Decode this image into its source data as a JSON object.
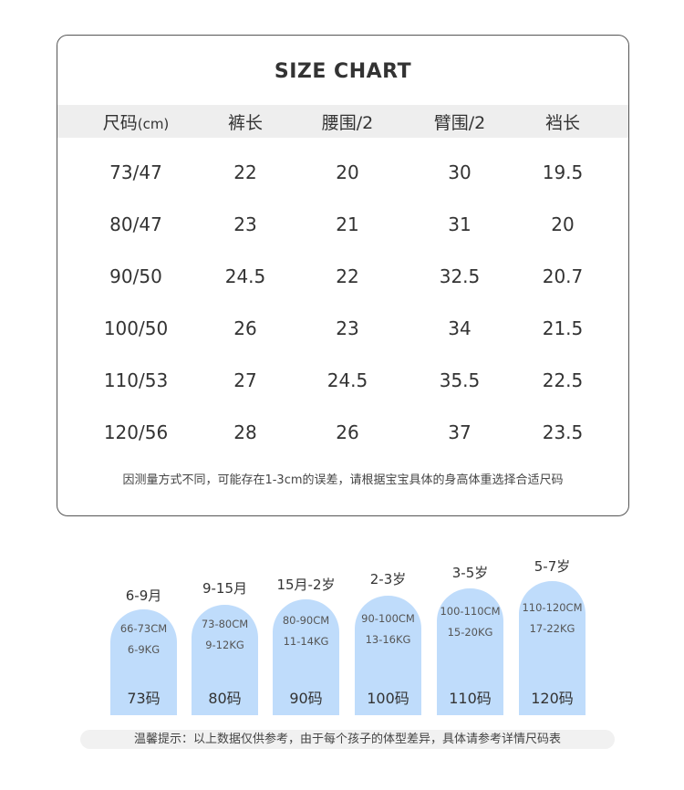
{
  "chart": {
    "title": "SIZE CHART",
    "headers": [
      {
        "label": "尺码",
        "unit": "(cm)"
      },
      {
        "label": "裤长",
        "unit": ""
      },
      {
        "label": "腰围/2",
        "unit": ""
      },
      {
        "label": "臂围/2",
        "unit": ""
      },
      {
        "label": "裆长",
        "unit": ""
      }
    ],
    "rows": [
      [
        "73/47",
        "22",
        "20",
        "30",
        "19.5"
      ],
      [
        "80/47",
        "23",
        "21",
        "31",
        "20"
      ],
      [
        "90/50",
        "24.5",
        "22",
        "32.5",
        "20.7"
      ],
      [
        "100/50",
        "26",
        "23",
        "34",
        "21.5"
      ],
      [
        "110/53",
        "27",
        "24.5",
        "35.5",
        "22.5"
      ],
      [
        "120/56",
        "28",
        "26",
        "37",
        "23.5"
      ]
    ],
    "note": "因测量方式不同，可能存在1-3cm的误差，请根据宝宝具体的身高体重选择合适尺码"
  },
  "ages": [
    {
      "age": "6-9月",
      "height": "66-73CM",
      "weight": "6-9KG",
      "code": "73码"
    },
    {
      "age": "9-15月",
      "height": "73-80CM",
      "weight": "9-12KG",
      "code": "80码"
    },
    {
      "age": "15月-2岁",
      "height": "80-90CM",
      "weight": "11-14KG",
      "code": "90码"
    },
    {
      "age": "2-3岁",
      "height": "90-100CM",
      "weight": "13-16KG",
      "code": "100码"
    },
    {
      "age": "3-5岁",
      "height": "100-110CM",
      "weight": "15-20KG",
      "code": "110码"
    },
    {
      "age": "5-7岁",
      "height": "110-120CM",
      "weight": "17-22KG",
      "code": "120码"
    }
  ],
  "tip": "温馨提示：以上数据仅供参考，由于每个孩子的体型差异，具体请参考详情尺码表",
  "colors": {
    "pill": "#bfdcfb",
    "header_bg": "#eeeeee",
    "border": "#555555"
  }
}
